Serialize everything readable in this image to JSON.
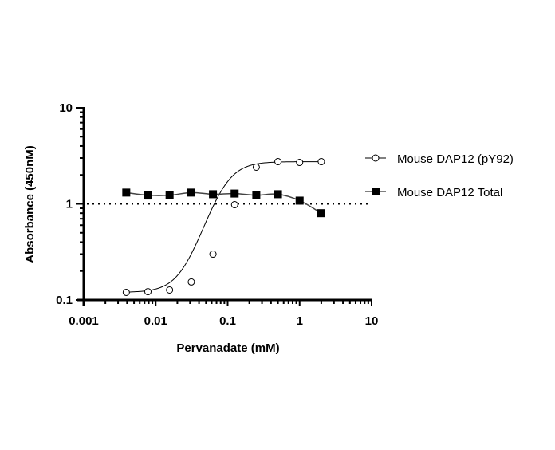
{
  "chart_data": {
    "type": "line",
    "title": "",
    "xlabel": "Pervanadate (mM)",
    "ylabel": "Absorbance (450nM)",
    "xscale": "log",
    "yscale": "log",
    "xlim": [
      0.001,
      10
    ],
    "ylim": [
      0.1,
      10
    ],
    "x_tick_labels": [
      "0.001",
      "0.01",
      "0.1",
      "1",
      "10"
    ],
    "y_tick_labels": [
      "0.1",
      "1",
      "10"
    ],
    "grid": false,
    "legend_position": "right",
    "reference_line": {
      "y": 1,
      "style": "dotted"
    },
    "x": [
      0.0039,
      0.0078,
      0.0156,
      0.03125,
      0.0625,
      0.125,
      0.25,
      0.5,
      1,
      2
    ],
    "series": [
      {
        "name": "Mouse DAP12 (pY92)",
        "marker": "open-circle",
        "fit": "sigmoidal",
        "values": [
          0.12,
          0.122,
          0.127,
          0.154,
          0.3,
          0.98,
          2.41,
          2.75,
          2.7,
          2.75
        ]
      },
      {
        "name": "Mouse DAP12 Total",
        "marker": "filled-square",
        "fit": "smooth",
        "values": [
          1.31,
          1.23,
          1.23,
          1.31,
          1.26,
          1.28,
          1.23,
          1.26,
          1.08,
          0.8
        ]
      }
    ]
  }
}
